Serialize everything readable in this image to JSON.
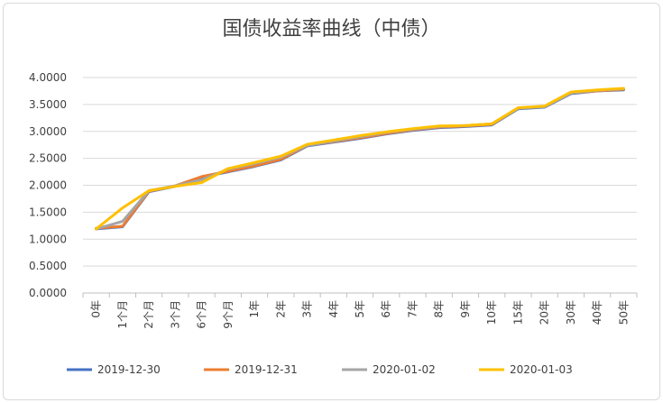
{
  "chart_data": {
    "type": "line",
    "title": "国债收益率曲线（中债）",
    "xlabel": "",
    "ylabel": "",
    "categories": [
      "0年",
      "1个月",
      "2个月",
      "3个月",
      "6个月",
      "9个月",
      "1年",
      "2年",
      "3年",
      "4年",
      "5年",
      "6年",
      "7年",
      "8年",
      "9年",
      "10年",
      "15年",
      "20年",
      "30年",
      "40年",
      "50年"
    ],
    "ylim": [
      0,
      4.0
    ],
    "yticks": [
      "0.0000",
      "0.5000",
      "1.0000",
      "1.5000",
      "2.0000",
      "2.5000",
      "3.0000",
      "3.5000",
      "4.0000"
    ],
    "grid": true,
    "legend_position": "bottom",
    "series": [
      {
        "name": "2019-12-30",
        "color": "#4472c4",
        "values": [
          1.19,
          1.23,
          1.88,
          1.98,
          2.15,
          2.25,
          2.35,
          2.47,
          2.73,
          2.8,
          2.87,
          2.95,
          3.02,
          3.07,
          3.09,
          3.12,
          3.42,
          3.45,
          3.7,
          3.75,
          3.77
        ]
      },
      {
        "name": "2019-12-31",
        "color": "#ed7d31",
        "values": [
          1.2,
          1.24,
          1.89,
          1.99,
          2.16,
          2.26,
          2.36,
          2.48,
          2.74,
          2.81,
          2.88,
          2.96,
          3.03,
          3.08,
          3.1,
          3.13,
          3.43,
          3.46,
          3.71,
          3.75,
          3.78
        ]
      },
      {
        "name": "2020-01-02",
        "color": "#a5a5a5",
        "values": [
          1.19,
          1.33,
          1.9,
          1.99,
          2.1,
          2.3,
          2.4,
          2.52,
          2.74,
          2.82,
          2.9,
          2.98,
          3.04,
          3.09,
          3.11,
          3.14,
          3.43,
          3.46,
          3.71,
          3.76,
          3.79
        ]
      },
      {
        "name": "2020-01-03",
        "color": "#ffc000",
        "values": [
          1.19,
          1.58,
          1.9,
          1.98,
          2.05,
          2.31,
          2.42,
          2.54,
          2.76,
          2.84,
          2.92,
          2.99,
          3.05,
          3.1,
          3.11,
          3.14,
          3.44,
          3.47,
          3.73,
          3.77,
          3.8
        ]
      }
    ]
  }
}
